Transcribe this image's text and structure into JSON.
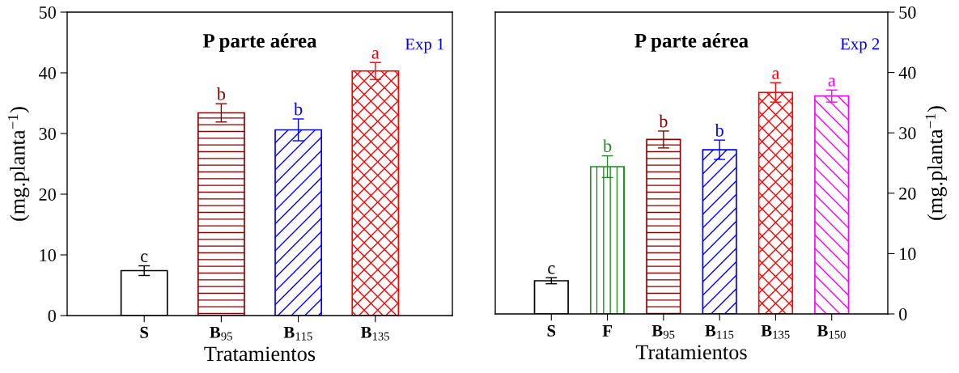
{
  "chart_data": [
    {
      "type": "bar",
      "title": "P parte aérea",
      "xlabel": "Tratamientos",
      "ylabel": "(mg.planta$^{−1}$)",
      "categories": [
        "S",
        "B$_{95}$",
        "B$_{115}$",
        "B$_{135}$"
      ],
      "values": [
        7.4,
        33.4,
        30.6,
        40.3
      ],
      "errors": [
        0.8,
        1.5,
        1.8,
        1.4
      ],
      "colors": [
        "#000000",
        "#8b0000",
        "#0000ff",
        "#ff0000"
      ],
      "ylim": [
        0,
        50
      ],
      "yticks": [
        0,
        10,
        20,
        30,
        40,
        50
      ],
      "annotations": [
        {
          "text": "c",
          "x": "S",
          "y": 8.2
        },
        {
          "text": "b",
          "x": "B$_{95}$",
          "y": 34.9
        },
        {
          "text": "b",
          "x": "B$_{115}$",
          "y": 32.4
        },
        {
          "text": "a",
          "x": "B$_{135}$",
          "y": 41.7
        },
        "Exp 1"
      ]
    },
    {
      "type": "bar",
      "title": "P parte aérea",
      "xlabel": "Tratamientos",
      "ylabel": "(mg.planta$^{−1}$)",
      "categories": [
        "S",
        "F",
        "B$_{95}$",
        "B$_{115}$",
        "B$_{135}$",
        "B$_{150}$"
      ],
      "values": [
        5.5,
        24.4,
        28.9,
        27.2,
        36.7,
        36.1
      ],
      "errors": [
        0.5,
        1.8,
        1.4,
        1.6,
        1.6,
        1.0
      ],
      "colors": [
        "#000000",
        "#228b22",
        "#8b0000",
        "#0000ff",
        "#ff0000",
        "#ff00ff"
      ],
      "ylim": [
        0,
        50
      ],
      "yticks": [
        0,
        10,
        20,
        30,
        40,
        50
      ],
      "annotations": [
        {
          "text": "c",
          "x": "S",
          "y": 6.0
        },
        {
          "text": "b",
          "x": "F",
          "y": 26.2
        },
        {
          "text": "b",
          "x": "B$_{95}$",
          "y": 30.3
        },
        {
          "text": "b",
          "x": "B$_{115}$",
          "y": 28.8
        },
        {
          "text": "a",
          "x": "B$_{135}$",
          "y": 38.3
        },
        {
          "text": "a",
          "x": "B$_{150}$",
          "y": 37.1
        },
        "Exp 2"
      ]
    }
  ]
}
